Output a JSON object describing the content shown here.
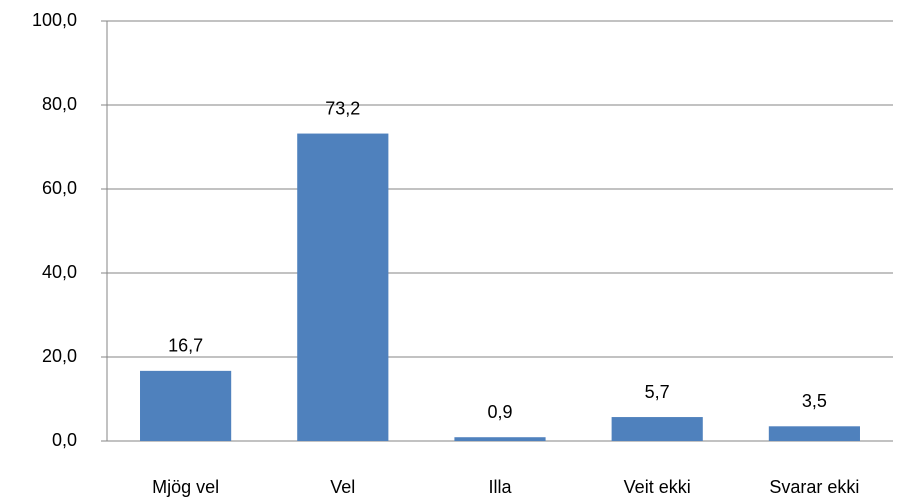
{
  "chart_data": {
    "type": "bar",
    "categories": [
      "Mjög vel",
      "Vel",
      "Illa",
      "Veit ekki",
      "Svarar ekki"
    ],
    "values": [
      16.7,
      73.2,
      0.9,
      5.7,
      3.5
    ],
    "value_labels": [
      "16,7",
      "73,2",
      "0,9",
      "5,7",
      "3,5"
    ],
    "color": "#4f81bd",
    "ylim": [
      0,
      100
    ],
    "yticks": [
      {
        "value": 0,
        "label": "0,0"
      },
      {
        "value": 20,
        "label": "20,0"
      },
      {
        "value": 40,
        "label": "40,0"
      },
      {
        "value": 60,
        "label": "60,0"
      },
      {
        "value": 80,
        "label": "80,0"
      },
      {
        "value": 100,
        "label": "100,0"
      }
    ],
    "grid": true
  }
}
